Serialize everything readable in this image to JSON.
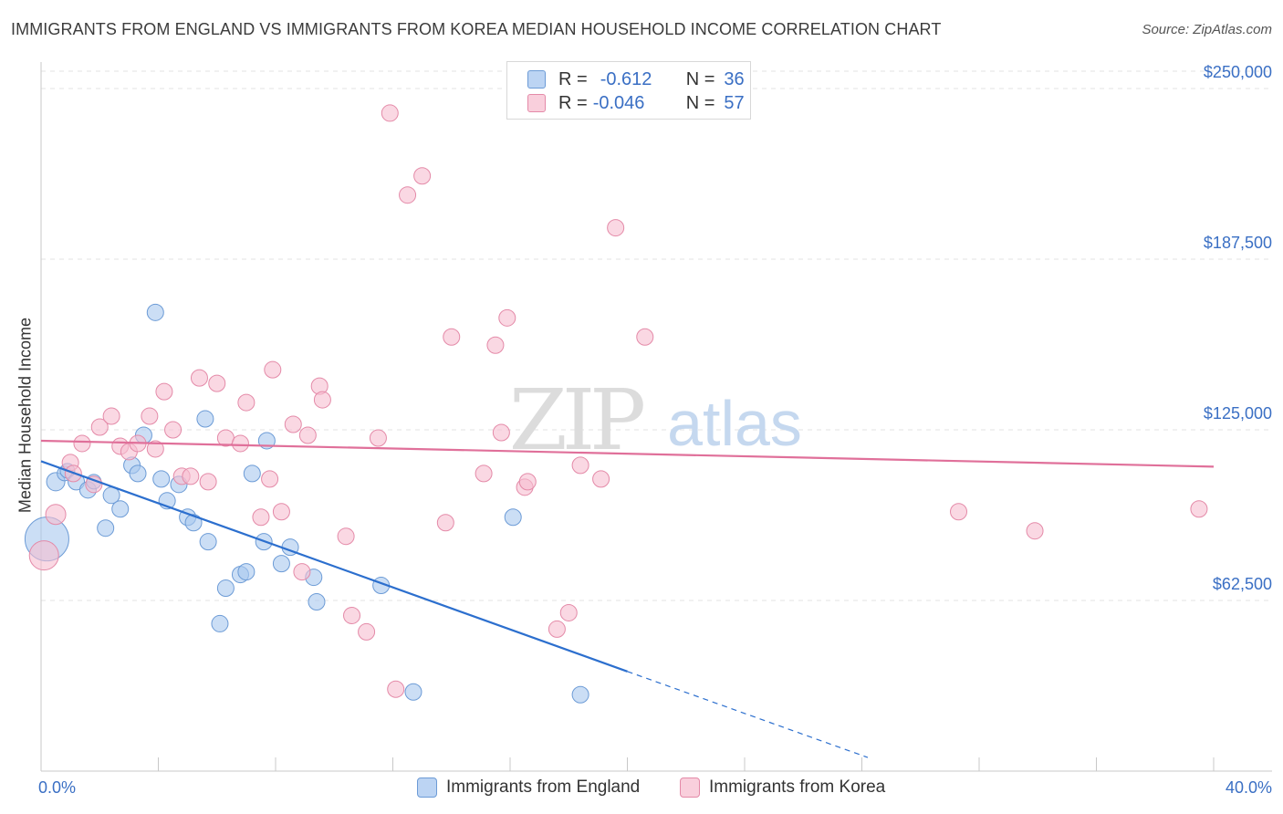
{
  "header": {
    "title": "IMMIGRANTS FROM ENGLAND VS IMMIGRANTS FROM KOREA MEDIAN HOUSEHOLD INCOME CORRELATION CHART",
    "source": "Source: ZipAtlas.com"
  },
  "legend": {
    "england": {
      "r_label": "R =",
      "r_value": "-0.612",
      "n_label": "N =",
      "n_value": "36"
    },
    "korea": {
      "r_label": "R =",
      "r_value": "-0.046",
      "n_label": "N =",
      "n_value": "57"
    }
  },
  "watermark": {
    "zip": "ZIP",
    "atlas": "atlas"
  },
  "colors": {
    "england_fill": "#a9c8ef",
    "england_stroke": "#6c9bd6",
    "england_line": "#2c6fce",
    "korea_fill": "#f6bed0",
    "korea_stroke": "#e48aa8",
    "korea_line": "#e0709a",
    "tick_label": "#3a6fc4",
    "grid": "#e3e3e3"
  },
  "chart_data": {
    "type": "scatter",
    "title": "IMMIGRANTS FROM ENGLAND VS IMMIGRANTS FROM KOREA MEDIAN HOUSEHOLD INCOME CORRELATION CHART",
    "xlabel": "",
    "ylabel": "Median Household Income",
    "xlim": [
      0,
      40
    ],
    "ylim": [
      0,
      250000
    ],
    "x_tick_labels": {
      "min": "0.0%",
      "max": "40.0%"
    },
    "y_ticks": [
      {
        "value": 62500,
        "label": "$62,500"
      },
      {
        "value": 125000,
        "label": "$125,000"
      },
      {
        "value": 187500,
        "label": "$187,500"
      },
      {
        "value": 250000,
        "label": "$250,000"
      }
    ],
    "grid": true,
    "legend_position": "top-center",
    "series": [
      {
        "name": "Immigrants from England",
        "r": -0.612,
        "n": 36,
        "trend": {
          "x0": 0,
          "y0": 113500,
          "x1": 20,
          "y1": 36500,
          "dashed_to_x": 28.2,
          "dashed_to_y": 5000
        },
        "points": [
          [
            0.2,
            85000,
            24
          ],
          [
            0.5,
            106000,
            10
          ],
          [
            0.8,
            109000,
            8
          ],
          [
            0.9,
            110000,
            8
          ],
          [
            1.2,
            106000,
            9
          ],
          [
            1.6,
            103000,
            9
          ],
          [
            1.8,
            106000,
            8
          ],
          [
            2.2,
            89000,
            9
          ],
          [
            2.4,
            101000,
            9
          ],
          [
            2.7,
            96000,
            9
          ],
          [
            3.1,
            112000,
            9
          ],
          [
            3.3,
            109000,
            9
          ],
          [
            3.5,
            123000,
            9
          ],
          [
            3.9,
            168000,
            9
          ],
          [
            4.1,
            107000,
            9
          ],
          [
            4.3,
            99000,
            9
          ],
          [
            4.7,
            105000,
            9
          ],
          [
            5.0,
            93000,
            9
          ],
          [
            5.2,
            91000,
            9
          ],
          [
            5.6,
            129000,
            9
          ],
          [
            5.7,
            84000,
            9
          ],
          [
            6.1,
            54000,
            9
          ],
          [
            6.3,
            67000,
            9
          ],
          [
            6.8,
            72000,
            9
          ],
          [
            7.0,
            73000,
            9
          ],
          [
            7.2,
            109000,
            9
          ],
          [
            7.6,
            84000,
            9
          ],
          [
            7.7,
            121000,
            9
          ],
          [
            8.2,
            76000,
            9
          ],
          [
            8.5,
            82000,
            9
          ],
          [
            9.3,
            71000,
            9
          ],
          [
            9.4,
            62000,
            9
          ],
          [
            11.6,
            68000,
            9
          ],
          [
            12.7,
            29000,
            9
          ],
          [
            16.1,
            93000,
            9
          ],
          [
            18.4,
            28000,
            9
          ]
        ]
      },
      {
        "name": "Immigrants from Korea",
        "r": -0.046,
        "n": 57,
        "trend": {
          "x0": 0,
          "y0": 121000,
          "x1": 40,
          "y1": 111500
        },
        "points": [
          [
            0.1,
            79000,
            16
          ],
          [
            0.5,
            94000,
            11
          ],
          [
            1.0,
            113000,
            9
          ],
          [
            1.1,
            109000,
            9
          ],
          [
            1.4,
            120000,
            9
          ],
          [
            1.8,
            105000,
            9
          ],
          [
            2.0,
            126000,
            9
          ],
          [
            2.4,
            130000,
            9
          ],
          [
            2.7,
            119000,
            9
          ],
          [
            3.0,
            117000,
            9
          ],
          [
            3.3,
            120000,
            9
          ],
          [
            3.7,
            130000,
            9
          ],
          [
            3.9,
            118000,
            9
          ],
          [
            4.2,
            139000,
            9
          ],
          [
            4.5,
            125000,
            9
          ],
          [
            4.8,
            108000,
            9
          ],
          [
            5.1,
            108000,
            9
          ],
          [
            5.4,
            144000,
            9
          ],
          [
            5.7,
            106000,
            9
          ],
          [
            6.0,
            142000,
            9
          ],
          [
            6.3,
            122000,
            9
          ],
          [
            6.8,
            120000,
            9
          ],
          [
            7.0,
            135000,
            9
          ],
          [
            7.5,
            93000,
            9
          ],
          [
            7.8,
            107000,
            9
          ],
          [
            7.9,
            147000,
            9
          ],
          [
            8.2,
            95000,
            9
          ],
          [
            8.6,
            127000,
            9
          ],
          [
            8.9,
            73000,
            9
          ],
          [
            9.1,
            123000,
            9
          ],
          [
            9.5,
            141000,
            9
          ],
          [
            9.6,
            136000,
            9
          ],
          [
            10.4,
            86000,
            9
          ],
          [
            10.6,
            57000,
            9
          ],
          [
            11.1,
            51000,
            9
          ],
          [
            11.5,
            122000,
            9
          ],
          [
            11.9,
            241000,
            9
          ],
          [
            12.1,
            30000,
            9
          ],
          [
            12.5,
            211000,
            9
          ],
          [
            13.0,
            218000,
            9
          ],
          [
            13.8,
            91000,
            9
          ],
          [
            14.0,
            159000,
            9
          ],
          [
            15.1,
            109000,
            9
          ],
          [
            15.5,
            156000,
            9
          ],
          [
            15.7,
            124000,
            9
          ],
          [
            15.9,
            166000,
            9
          ],
          [
            16.5,
            104000,
            9
          ],
          [
            16.6,
            106000,
            9
          ],
          [
            17.6,
            52000,
            9
          ],
          [
            18.0,
            58000,
            9
          ],
          [
            18.4,
            112000,
            9
          ],
          [
            19.1,
            107000,
            9
          ],
          [
            19.6,
            199000,
            9
          ],
          [
            20.6,
            159000,
            9
          ],
          [
            31.3,
            95000,
            9
          ],
          [
            33.9,
            88000,
            9
          ],
          [
            39.5,
            96000,
            9
          ]
        ]
      }
    ]
  },
  "bottom_legend": {
    "england_label": "Immigrants from England",
    "korea_label": "Immigrants from Korea"
  }
}
